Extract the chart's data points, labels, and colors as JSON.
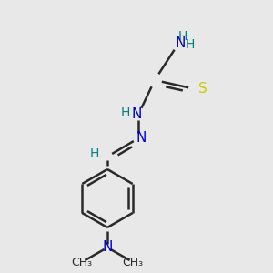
{
  "bg_color": "#e8e8e8",
  "bond_color": "#2a2a2a",
  "bond_width": 1.8,
  "dbo": 0.012,
  "figsize": [
    3.0,
    3.0
  ],
  "dpi": 100,
  "colors": {
    "N": "#0000cc",
    "S": "#cccc00",
    "H": "#008080",
    "C": "#2a2a2a"
  },
  "fs": 11
}
